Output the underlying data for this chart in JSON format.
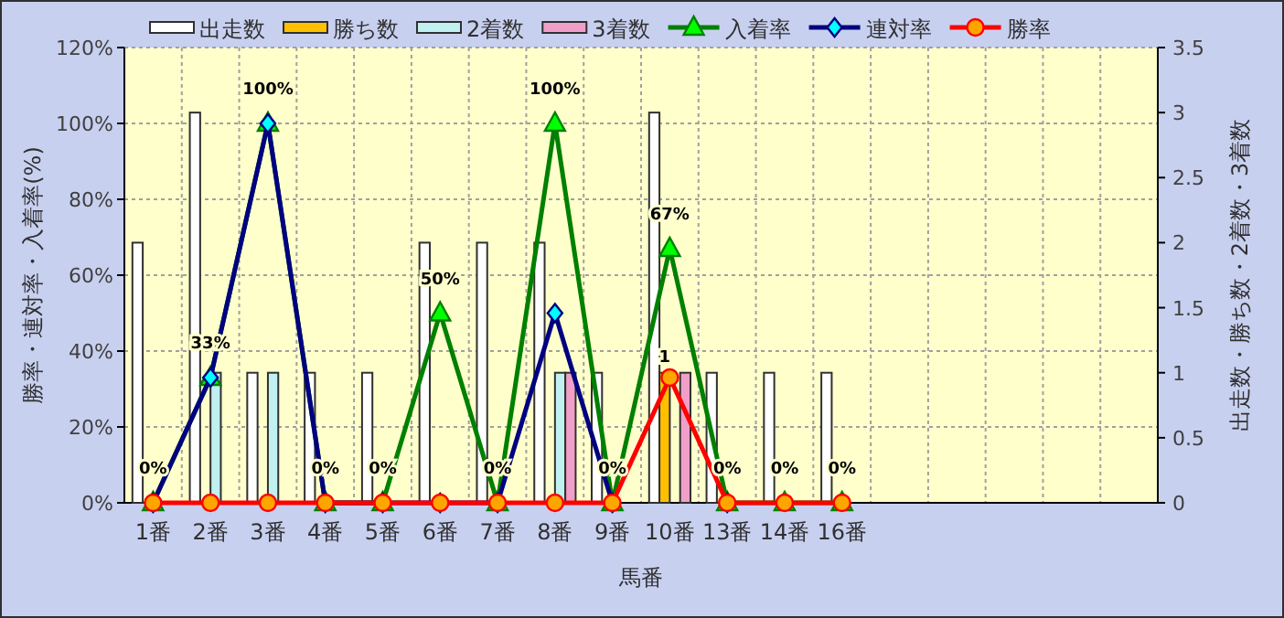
{
  "chart_data": {
    "type": "bar",
    "xlabel": "馬番",
    "ylabel": "勝率・連対率・入着率(%)",
    "y2label": "出走数・勝ち数・2着数・3着数",
    "categories": [
      "1番",
      "2番",
      "3番",
      "4番",
      "5番",
      "6番",
      "7番",
      "8番",
      "9番",
      "10番",
      "13番",
      "14番",
      "16番",
      null,
      null,
      null,
      null,
      null
    ],
    "ylim": [
      0,
      120
    ],
    "yticks": [
      {
        "value": 0,
        "label": "0%"
      },
      {
        "value": 20,
        "label": "20%"
      },
      {
        "value": 40,
        "label": "40%"
      },
      {
        "value": 60,
        "label": "60%"
      },
      {
        "value": 80,
        "label": "80%"
      },
      {
        "value": 100,
        "label": "100%"
      },
      {
        "value": 120,
        "label": "120%"
      }
    ],
    "y2lim": [
      0,
      3.5
    ],
    "y2ticks": [
      0,
      0.5,
      1,
      1.5,
      2,
      2.5,
      3,
      3.5
    ],
    "grid": true,
    "legend": "top",
    "series": [
      {
        "name": "出走数",
        "axis": "y2",
        "color": "#ffffff",
        "values": [
          2,
          3,
          1,
          1,
          1,
          2,
          2,
          2,
          1,
          3,
          1,
          1,
          1,
          null,
          null,
          null,
          null,
          null
        ]
      },
      {
        "name": "勝ち数",
        "axis": "y2",
        "color": "#ffc000",
        "values": [
          0,
          0,
          0,
          0,
          0,
          0,
          0,
          0,
          0,
          1,
          0,
          0,
          0,
          null,
          null,
          null,
          null,
          null
        ],
        "value_labels": [
          null,
          null,
          null,
          null,
          null,
          null,
          null,
          null,
          null,
          "1",
          null,
          null,
          null,
          null,
          null,
          null,
          null,
          null
        ]
      },
      {
        "name": "2着数",
        "axis": "y2",
        "color": "#c0f0f0",
        "values": [
          0,
          1,
          1,
          0,
          0,
          0,
          0,
          1,
          0,
          0,
          0,
          0,
          0,
          null,
          null,
          null,
          null,
          null
        ]
      },
      {
        "name": "3着数",
        "axis": "y2",
        "color": "#f0a0c8",
        "values": [
          0,
          0,
          0,
          0,
          0,
          0,
          0,
          1,
          0,
          1,
          0,
          0,
          0,
          null,
          null,
          null,
          null,
          null
        ]
      },
      {
        "name": "入着率",
        "type": "line",
        "color": "#008000",
        "marker": "triangle",
        "values": [
          0,
          33,
          100,
          0,
          0,
          50,
          0,
          100,
          0,
          67,
          0,
          0,
          0,
          null,
          null,
          null,
          null,
          null
        ],
        "value_labels": [
          "0%",
          "33%",
          "100%",
          "0%",
          "0%",
          "50%",
          "0%",
          "100%",
          "0%",
          "67%",
          "0%",
          "0%",
          "0%",
          null,
          null,
          null,
          null,
          null
        ]
      },
      {
        "name": "連対率",
        "type": "line",
        "color": "#000080",
        "marker": "diamond",
        "values": [
          0,
          33,
          100,
          0,
          0,
          0,
          0,
          50,
          0,
          null,
          0,
          null,
          null,
          null,
          null,
          null,
          null,
          null
        ]
      },
      {
        "name": "勝率",
        "type": "line",
        "color": "#ff0000",
        "marker": "circle",
        "values": [
          0,
          0,
          0,
          0,
          0,
          0,
          0,
          0,
          0,
          33,
          0,
          0,
          0,
          null,
          null,
          null,
          null,
          null
        ]
      }
    ]
  }
}
